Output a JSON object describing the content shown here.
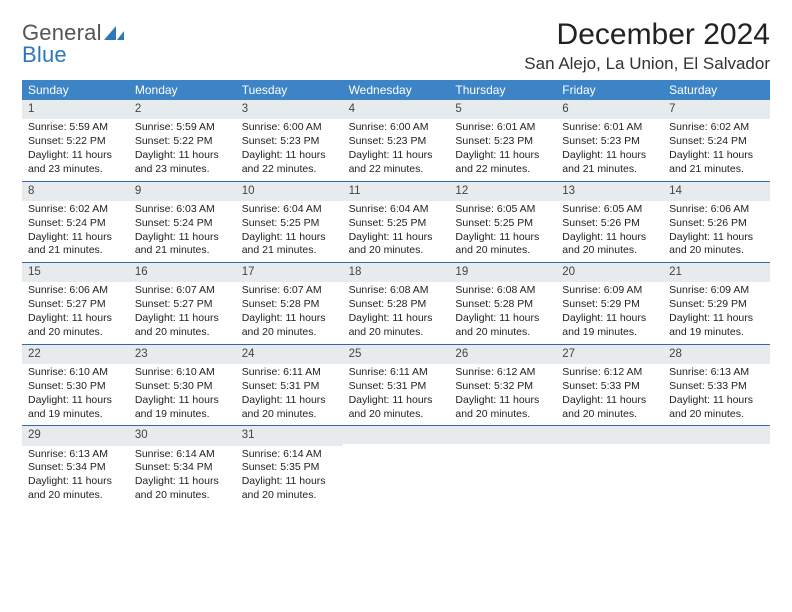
{
  "logo": {
    "line1": "General",
    "line2": "Blue"
  },
  "title": "December 2024",
  "location": "San Alejo, La Union, El Salvador",
  "colors": {
    "header_band": "#3d84c6",
    "daynum_band": "#e8ebed",
    "week_rule": "#2e6aa8",
    "logo_gray": "#555555",
    "logo_blue": "#2e77b8"
  },
  "dow": [
    "Sunday",
    "Monday",
    "Tuesday",
    "Wednesday",
    "Thursday",
    "Friday",
    "Saturday"
  ],
  "weeks": [
    [
      {
        "n": "1",
        "sr": "Sunrise: 5:59 AM",
        "ss": "Sunset: 5:22 PM",
        "dl": "Daylight: 11 hours and 23 minutes."
      },
      {
        "n": "2",
        "sr": "Sunrise: 5:59 AM",
        "ss": "Sunset: 5:22 PM",
        "dl": "Daylight: 11 hours and 23 minutes."
      },
      {
        "n": "3",
        "sr": "Sunrise: 6:00 AM",
        "ss": "Sunset: 5:23 PM",
        "dl": "Daylight: 11 hours and 22 minutes."
      },
      {
        "n": "4",
        "sr": "Sunrise: 6:00 AM",
        "ss": "Sunset: 5:23 PM",
        "dl": "Daylight: 11 hours and 22 minutes."
      },
      {
        "n": "5",
        "sr": "Sunrise: 6:01 AM",
        "ss": "Sunset: 5:23 PM",
        "dl": "Daylight: 11 hours and 22 minutes."
      },
      {
        "n": "6",
        "sr": "Sunrise: 6:01 AM",
        "ss": "Sunset: 5:23 PM",
        "dl": "Daylight: 11 hours and 21 minutes."
      },
      {
        "n": "7",
        "sr": "Sunrise: 6:02 AM",
        "ss": "Sunset: 5:24 PM",
        "dl": "Daylight: 11 hours and 21 minutes."
      }
    ],
    [
      {
        "n": "8",
        "sr": "Sunrise: 6:02 AM",
        "ss": "Sunset: 5:24 PM",
        "dl": "Daylight: 11 hours and 21 minutes."
      },
      {
        "n": "9",
        "sr": "Sunrise: 6:03 AM",
        "ss": "Sunset: 5:24 PM",
        "dl": "Daylight: 11 hours and 21 minutes."
      },
      {
        "n": "10",
        "sr": "Sunrise: 6:04 AM",
        "ss": "Sunset: 5:25 PM",
        "dl": "Daylight: 11 hours and 21 minutes."
      },
      {
        "n": "11",
        "sr": "Sunrise: 6:04 AM",
        "ss": "Sunset: 5:25 PM",
        "dl": "Daylight: 11 hours and 20 minutes."
      },
      {
        "n": "12",
        "sr": "Sunrise: 6:05 AM",
        "ss": "Sunset: 5:25 PM",
        "dl": "Daylight: 11 hours and 20 minutes."
      },
      {
        "n": "13",
        "sr": "Sunrise: 6:05 AM",
        "ss": "Sunset: 5:26 PM",
        "dl": "Daylight: 11 hours and 20 minutes."
      },
      {
        "n": "14",
        "sr": "Sunrise: 6:06 AM",
        "ss": "Sunset: 5:26 PM",
        "dl": "Daylight: 11 hours and 20 minutes."
      }
    ],
    [
      {
        "n": "15",
        "sr": "Sunrise: 6:06 AM",
        "ss": "Sunset: 5:27 PM",
        "dl": "Daylight: 11 hours and 20 minutes."
      },
      {
        "n": "16",
        "sr": "Sunrise: 6:07 AM",
        "ss": "Sunset: 5:27 PM",
        "dl": "Daylight: 11 hours and 20 minutes."
      },
      {
        "n": "17",
        "sr": "Sunrise: 6:07 AM",
        "ss": "Sunset: 5:28 PM",
        "dl": "Daylight: 11 hours and 20 minutes."
      },
      {
        "n": "18",
        "sr": "Sunrise: 6:08 AM",
        "ss": "Sunset: 5:28 PM",
        "dl": "Daylight: 11 hours and 20 minutes."
      },
      {
        "n": "19",
        "sr": "Sunrise: 6:08 AM",
        "ss": "Sunset: 5:28 PM",
        "dl": "Daylight: 11 hours and 20 minutes."
      },
      {
        "n": "20",
        "sr": "Sunrise: 6:09 AM",
        "ss": "Sunset: 5:29 PM",
        "dl": "Daylight: 11 hours and 19 minutes."
      },
      {
        "n": "21",
        "sr": "Sunrise: 6:09 AM",
        "ss": "Sunset: 5:29 PM",
        "dl": "Daylight: 11 hours and 19 minutes."
      }
    ],
    [
      {
        "n": "22",
        "sr": "Sunrise: 6:10 AM",
        "ss": "Sunset: 5:30 PM",
        "dl": "Daylight: 11 hours and 19 minutes."
      },
      {
        "n": "23",
        "sr": "Sunrise: 6:10 AM",
        "ss": "Sunset: 5:30 PM",
        "dl": "Daylight: 11 hours and 19 minutes."
      },
      {
        "n": "24",
        "sr": "Sunrise: 6:11 AM",
        "ss": "Sunset: 5:31 PM",
        "dl": "Daylight: 11 hours and 20 minutes."
      },
      {
        "n": "25",
        "sr": "Sunrise: 6:11 AM",
        "ss": "Sunset: 5:31 PM",
        "dl": "Daylight: 11 hours and 20 minutes."
      },
      {
        "n": "26",
        "sr": "Sunrise: 6:12 AM",
        "ss": "Sunset: 5:32 PM",
        "dl": "Daylight: 11 hours and 20 minutes."
      },
      {
        "n": "27",
        "sr": "Sunrise: 6:12 AM",
        "ss": "Sunset: 5:33 PM",
        "dl": "Daylight: 11 hours and 20 minutes."
      },
      {
        "n": "28",
        "sr": "Sunrise: 6:13 AM",
        "ss": "Sunset: 5:33 PM",
        "dl": "Daylight: 11 hours and 20 minutes."
      }
    ],
    [
      {
        "n": "29",
        "sr": "Sunrise: 6:13 AM",
        "ss": "Sunset: 5:34 PM",
        "dl": "Daylight: 11 hours and 20 minutes."
      },
      {
        "n": "30",
        "sr": "Sunrise: 6:14 AM",
        "ss": "Sunset: 5:34 PM",
        "dl": "Daylight: 11 hours and 20 minutes."
      },
      {
        "n": "31",
        "sr": "Sunrise: 6:14 AM",
        "ss": "Sunset: 5:35 PM",
        "dl": "Daylight: 11 hours and 20 minutes."
      },
      null,
      null,
      null,
      null
    ]
  ]
}
